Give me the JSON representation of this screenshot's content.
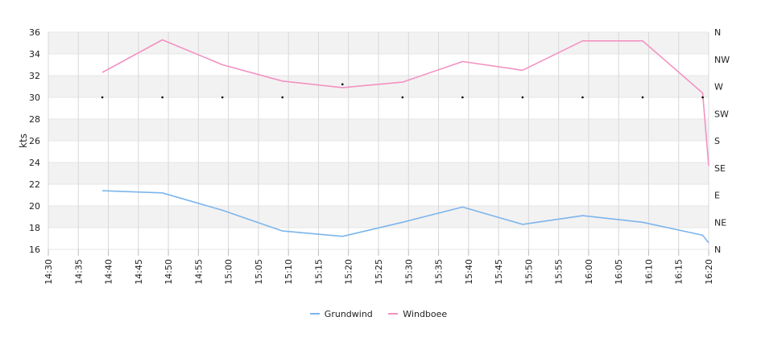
{
  "chart_data": {
    "type": "line",
    "ylabel": "kts",
    "ylim": [
      16,
      36
    ],
    "y_ticks": [
      "16",
      "18",
      "20",
      "22",
      "24",
      "26",
      "28",
      "30",
      "32",
      "34",
      "36"
    ],
    "x_ticks": [
      "14:30",
      "14:35",
      "14:40",
      "14:45",
      "14:50",
      "14:55",
      "15:00",
      "15:05",
      "15:10",
      "15:15",
      "15:20",
      "15:25",
      "15:30",
      "15:35",
      "15:40",
      "15:45",
      "15:50",
      "15:55",
      "16:00",
      "16:05",
      "16:10",
      "16:15",
      "16:20"
    ],
    "x_range": [
      "14:30",
      "16:20"
    ],
    "right_axis_ticks": [
      "N",
      "NE",
      "E",
      "SE",
      "S",
      "SW",
      "W",
      "NW",
      "N"
    ],
    "grid": true,
    "legend_position": "bottom",
    "series": [
      {
        "name": "Grundwind",
        "color": "#7cb5ec",
        "points": [
          [
            "14:39",
            21.4
          ],
          [
            "14:49",
            21.2
          ],
          [
            "14:59",
            19.6
          ],
          [
            "15:09",
            17.7
          ],
          [
            "15:19",
            17.2
          ],
          [
            "15:29",
            18.5
          ],
          [
            "15:39",
            19.9
          ],
          [
            "15:49",
            18.3
          ],
          [
            "15:59",
            19.1
          ],
          [
            "16:09",
            18.5
          ],
          [
            "16:19",
            17.3
          ],
          [
            "16:20",
            16.6
          ]
        ]
      },
      {
        "name": "Windboee",
        "color": "#f392c1",
        "points": [
          [
            "14:39",
            32.3
          ],
          [
            "14:49",
            35.3
          ],
          [
            "14:59",
            33.0
          ],
          [
            "15:09",
            31.5
          ],
          [
            "15:19",
            30.9
          ],
          [
            "15:29",
            31.4
          ],
          [
            "15:39",
            33.3
          ],
          [
            "15:49",
            32.5
          ],
          [
            "15:59",
            35.2
          ],
          [
            "16:09",
            35.2
          ],
          [
            "16:19",
            30.4
          ],
          [
            "16:20",
            23.7
          ]
        ]
      },
      {
        "name": "",
        "color": "#000000",
        "marker": "dot",
        "points": [
          [
            "14:39",
            30.0
          ],
          [
            "14:49",
            30.0
          ],
          [
            "14:59",
            30.0
          ],
          [
            "15:09",
            30.0
          ],
          [
            "15:19",
            31.2
          ],
          [
            "15:29",
            30.0
          ],
          [
            "15:39",
            30.0
          ],
          [
            "15:49",
            30.0
          ],
          [
            "15:59",
            30.0
          ],
          [
            "16:09",
            30.0
          ],
          [
            "16:19",
            30.0
          ]
        ]
      }
    ]
  }
}
